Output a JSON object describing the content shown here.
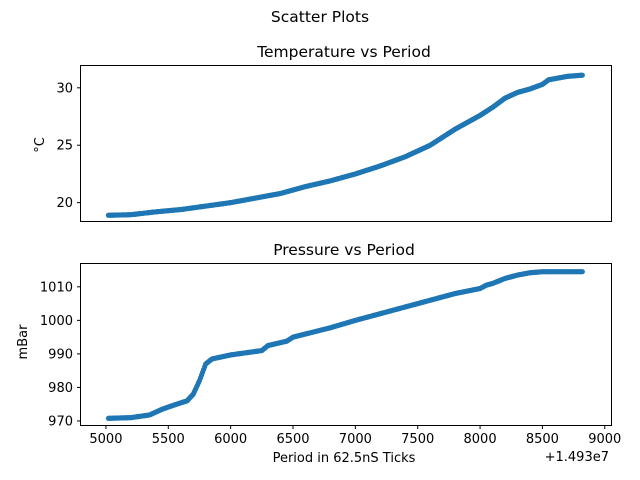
{
  "figure": {
    "title": "Scatter Plots"
  },
  "chart_data": [
    {
      "type": "scatter",
      "title": "Temperature vs Period",
      "xlabel": "",
      "ylabel": "°C",
      "xlim": [
        4800,
        9050
      ],
      "ylim": [
        18.4,
        31.9
      ],
      "yticks": [
        20,
        25,
        30
      ],
      "ytick_labels": [
        "20",
        "25",
        "30"
      ],
      "grid": false,
      "color": "#1f77b4",
      "series": [
        {
          "x": [
            5020,
            5200,
            5400,
            5600,
            5800,
            6000,
            6200,
            6400,
            6600,
            6800,
            7000,
            7200,
            7400,
            7600,
            7800,
            8000,
            8100,
            8200,
            8300,
            8400,
            8500,
            8550,
            8700,
            8820
          ],
          "y": [
            18.9,
            18.95,
            19.2,
            19.4,
            19.7,
            20.0,
            20.4,
            20.8,
            21.4,
            21.9,
            22.5,
            23.2,
            24.0,
            25.0,
            26.4,
            27.6,
            28.3,
            29.1,
            29.6,
            29.9,
            30.3,
            30.7,
            31.0,
            31.1
          ]
        }
      ]
    },
    {
      "type": "scatter",
      "title": "Pressure vs Period",
      "xlabel": "Period in 62.5nS Ticks",
      "ylabel": "mBar",
      "xlim": [
        4800,
        9050
      ],
      "ylim": [
        968.8,
        1016.8
      ],
      "xticks": [
        5000,
        5500,
        6000,
        6500,
        7000,
        7500,
        8000,
        8500,
        9000
      ],
      "xtick_labels": [
        "5000",
        "5500",
        "6000",
        "6500",
        "7000",
        "7500",
        "8000",
        "8500",
        "9000"
      ],
      "yticks": [
        970,
        980,
        990,
        1000,
        1010
      ],
      "ytick_labels": [
        "970",
        "980",
        "990",
        "1000",
        "1010"
      ],
      "x_offset_label": "+1.493e7",
      "grid": false,
      "color": "#1f77b4",
      "series": [
        {
          "x": [
            5020,
            5200,
            5350,
            5450,
            5550,
            5650,
            5700,
            5750,
            5800,
            5850,
            6000,
            6250,
            6300,
            6450,
            6500,
            6800,
            7000,
            7200,
            7500,
            7800,
            8000,
            8050,
            8100,
            8200,
            8300,
            8400,
            8500,
            8700,
            8820
          ],
          "y": [
            970.8,
            971.0,
            971.8,
            973.5,
            974.8,
            976.0,
            978.0,
            982.0,
            987.0,
            988.5,
            989.7,
            991.0,
            992.5,
            993.8,
            995.0,
            997.8,
            1000.0,
            1002.0,
            1005.0,
            1008.0,
            1009.5,
            1010.5,
            1011.0,
            1012.5,
            1013.5,
            1014.2,
            1014.5,
            1014.5,
            1014.5
          ]
        }
      ]
    }
  ]
}
